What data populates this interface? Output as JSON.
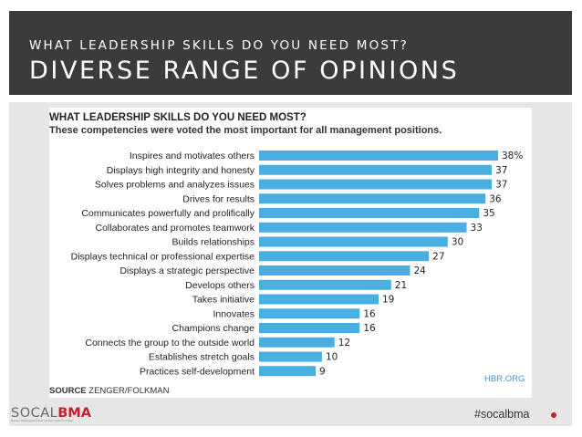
{
  "header": {
    "kicker": "WHAT LEADERSHIP SKILLS DO YOU NEED MOST?",
    "title": "DIVERSE RANGE OF OPINIONS"
  },
  "chart_data": {
    "type": "bar",
    "orientation": "horizontal",
    "title": "WHAT LEADERSHIP SKILLS DO YOU NEED MOST?",
    "subtitle": "These competencies were voted the most important for all management positions.",
    "categories": [
      "Inspires and motivates others",
      "Displays high integrity and honesty",
      "Solves problems and analyzes issues",
      "Drives for results",
      "Communicates powerfully and prolifically",
      "Collaborates and promotes teamwork",
      "Builds relationships",
      "Displays technical or professional expertise",
      "Displays a strategic perspective",
      "Develops others",
      "Takes initiative",
      "Innovates",
      "Champions change",
      "Connects the group to the outside world",
      "Establishes stretch goals",
      "Practices self-development"
    ],
    "values": [
      38,
      37,
      37,
      36,
      35,
      33,
      30,
      27,
      24,
      21,
      19,
      16,
      16,
      12,
      10,
      9
    ],
    "value_labels": [
      "38%",
      "37",
      "37",
      "36",
      "35",
      "33",
      "30",
      "27",
      "24",
      "21",
      "19",
      "16",
      "16",
      "12",
      "10",
      "9"
    ],
    "xlim": [
      0,
      38
    ],
    "bar_color": "#4aaee0",
    "source_label": "SOURCE",
    "source_text": "ZENGER/FOLKMAN",
    "credit": "HBR.ORG"
  },
  "footer": {
    "logo_social": "SOCAL",
    "logo_bma": "BMA",
    "logo_tagline": "Business Marketing Association | Southern California Chapter",
    "hashtag": "#socalbma"
  },
  "colors": {
    "header_bg": "#3b3b3b",
    "panel_bg": "#e6e6e6",
    "brand_red": "#c8202f"
  }
}
